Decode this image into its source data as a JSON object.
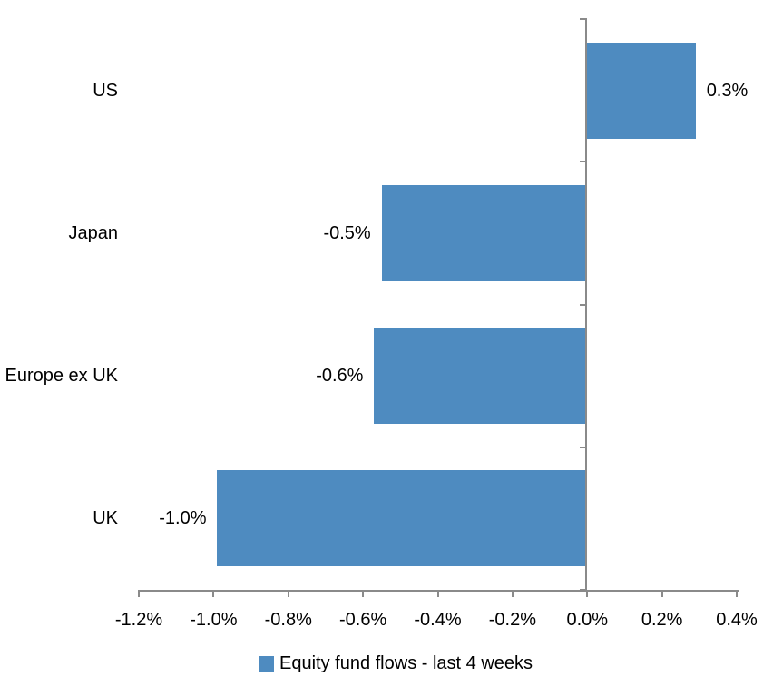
{
  "chart_data": {
    "type": "bar",
    "orientation": "horizontal",
    "title": "",
    "xlabel": "",
    "ylabel": "",
    "series_name": "Equity fund flows - last 4 weeks",
    "categories": [
      "US",
      "Japan",
      "Europe ex UK",
      "UK"
    ],
    "values": [
      0.3,
      -0.5,
      -0.6,
      -1.0
    ],
    "value_labels": [
      "0.3%",
      "-0.5%",
      "-0.6%",
      "-1.0%"
    ],
    "plot_values": [
      0.29,
      -0.55,
      -0.57,
      -0.99
    ],
    "x_axis": {
      "min": -1.2,
      "max": 0.4,
      "tick_interval": 0.2,
      "tick_labels": [
        "-1.2%",
        "-1.0%",
        "-0.8%",
        "-0.6%",
        "-0.4%",
        "-0.2%",
        "0.0%",
        "0.2%",
        "0.4%"
      ]
    },
    "grid": false,
    "legend_position": "bottom",
    "colors": {
      "bar": "#4E8BC0",
      "axis": "#8A8A8A",
      "text": "#000000",
      "background": "#FFFFFF"
    }
  }
}
